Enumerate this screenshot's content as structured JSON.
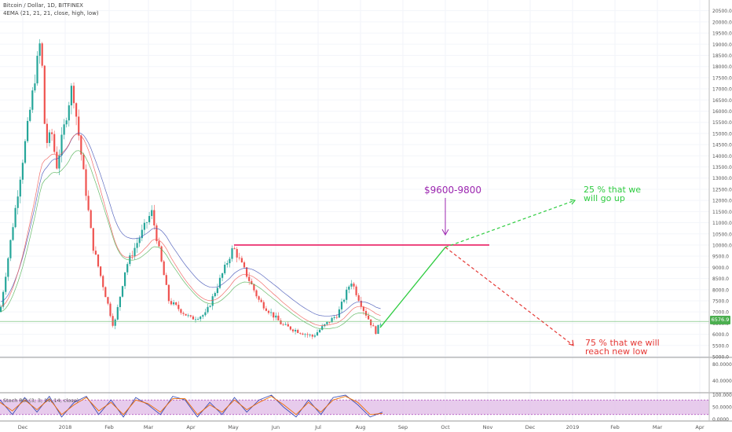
{
  "legend": {
    "title": "Bitcoin / Dollar, 1D, BITFINEX",
    "ema": "4EMA (21, 21, 21, close, high, low)",
    "rsi": "Stoch RSI (3, 3, 14, 14, close)"
  },
  "annotations": {
    "target": "$9600-9800",
    "up_line1": "25 % that we",
    "up_line2": "will go up",
    "down_line1": "75 % that we will",
    "down_line2": "reach new low"
  },
  "price_badge": "6576.9",
  "colors": {
    "up": "#26a69a",
    "down": "#ef5350",
    "resistance": "#e91e63",
    "arrow_green": "#2ecc40",
    "arrow_red": "#e53935",
    "rsi_band": "#e1bee7"
  },
  "chart_data": [
    {
      "type": "line",
      "subtype": "candlestick",
      "title": "Bitcoin / Dollar, 1D, BITFINEX",
      "x_tick_labels": [
        "Dec",
        "2018",
        "Feb",
        "Mar",
        "Apr",
        "May",
        "Jun",
        "Jul",
        "Aug",
        "Sep",
        "Oct",
        "Nov",
        "Dec",
        "2019",
        "Feb",
        "Mar",
        "Apr"
      ],
      "y_tick_labels": [
        "5000.0",
        "5500.0",
        "6000.0",
        "6500.0",
        "7000.0",
        "7500.0",
        "8000.0",
        "8500.0",
        "9000.0",
        "9500.0",
        "10000.0",
        "10500.0",
        "11000.0",
        "11500.0",
        "12000.0",
        "12500.0",
        "13000.0",
        "13500.0",
        "14000.0",
        "14500.0",
        "15000.0",
        "15500.0",
        "16000.0",
        "16500.0",
        "17000.0",
        "17500.0",
        "18000.0",
        "18500.0",
        "19000.0",
        "19500.0",
        "20000.0",
        "20500.0"
      ],
      "ylim": [
        5000,
        20700
      ],
      "x_key_points": [
        {
          "date": "Nov 2017",
          "close": 7000
        },
        {
          "date": "Dec 17 2017",
          "close": 19300
        },
        {
          "date": "Dec 2017",
          "close": 14000
        },
        {
          "date": "Jan 2018",
          "close": 17200
        },
        {
          "date": "Feb 6 2018",
          "close": 6000
        },
        {
          "date": "Mar 5 2018",
          "close": 11500
        },
        {
          "date": "Apr 6 2018",
          "close": 6600
        },
        {
          "date": "May 5 2018",
          "close": 9900
        },
        {
          "date": "Jun 29 2018",
          "close": 5800
        },
        {
          "date": "Jul 25 2018",
          "close": 8400
        },
        {
          "date": "Aug 12 2018",
          "close": 6100
        },
        {
          "date": "Aug 15 2018",
          "close": 6577
        }
      ],
      "series": [
        {
          "name": "Bitcoin / Dollar",
          "last": 6576.9
        }
      ],
      "resistance_level": 10000,
      "projection": [
        {
          "date": "Aug 15 2018",
          "value": 6300
        },
        {
          "date": "Oct 2018",
          "value": 9900
        },
        {
          "date": "Dec 2018",
          "value": 12000,
          "label": "25 % that we will go up"
        },
        {
          "date": "Dec 2018",
          "value": 5500,
          "label": "75 % that we will reach new low"
        }
      ]
    },
    {
      "type": "line",
      "title": "Stoch RSI (3, 3, 14, 14, close)",
      "y_tick_labels": [
        "100.0000",
        "50.0000",
        "0.0000"
      ],
      "ylim": [
        0,
        100
      ],
      "band": [
        20,
        80
      ],
      "series": [
        {
          "name": "K",
          "values": [
            80,
            20,
            90,
            30,
            95,
            10,
            70,
            95,
            20,
            80,
            10,
            90,
            60,
            20,
            95,
            80,
            10,
            70,
            20,
            90,
            30,
            80,
            100,
            50,
            10,
            80,
            20,
            90,
            100,
            60,
            10,
            30
          ]
        },
        {
          "name": "D",
          "values": [
            70,
            35,
            80,
            40,
            85,
            20,
            60,
            90,
            35,
            70,
            20,
            80,
            65,
            30,
            85,
            85,
            20,
            60,
            30,
            80,
            40,
            70,
            95,
            60,
            20,
            70,
            30,
            80,
            95,
            70,
            20,
            25
          ]
        }
      ]
    },
    {
      "type": "line",
      "title": "",
      "y_tick_labels": [
        "80.0000",
        "40.0000"
      ],
      "ylim": [
        0,
        100
      ]
    }
  ]
}
